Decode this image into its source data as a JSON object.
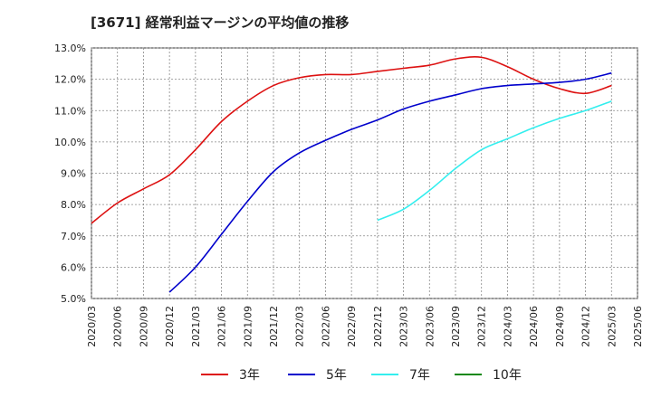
{
  "chart_data": {
    "type": "line",
    "title": "[3671]  経常利益マージンの平均値の推移",
    "xlabel": "",
    "ylabel": "",
    "ylim": [
      5.0,
      13.0
    ],
    "x_ticks": [
      "2020/03",
      "2020/06",
      "2020/09",
      "2020/12",
      "2021/03",
      "2021/06",
      "2021/09",
      "2021/12",
      "2022/03",
      "2022/06",
      "2022/09",
      "2022/12",
      "2023/03",
      "2023/06",
      "2023/09",
      "2023/12",
      "2024/03",
      "2024/06",
      "2024/09",
      "2024/12",
      "2025/03",
      "2025/06"
    ],
    "y_ticks": [
      "5.0%",
      "6.0%",
      "7.0%",
      "8.0%",
      "9.0%",
      "10.0%",
      "11.0%",
      "12.0%",
      "13.0%"
    ],
    "grid": true,
    "legend_position": "bottom",
    "series": [
      {
        "name": "3年",
        "color": "#dd1111",
        "values": [
          7.4,
          8.05,
          8.5,
          8.95,
          9.75,
          10.65,
          11.3,
          11.8,
          12.05,
          12.15,
          12.15,
          12.25,
          12.35,
          12.45,
          12.65,
          12.7,
          12.4,
          12.0,
          11.7,
          11.55,
          11.8
        ]
      },
      {
        "name": "5年",
        "color": "#0000cc",
        "values": [
          null,
          null,
          null,
          5.2,
          6.0,
          7.05,
          8.1,
          9.05,
          9.65,
          10.05,
          10.4,
          10.7,
          11.05,
          11.3,
          11.5,
          11.7,
          11.8,
          11.85,
          11.9,
          12.0,
          12.2
        ]
      },
      {
        "name": "7年",
        "color": "#33eeee",
        "values": [
          null,
          null,
          null,
          null,
          null,
          null,
          null,
          null,
          null,
          null,
          null,
          7.5,
          7.85,
          8.45,
          9.15,
          9.75,
          10.1,
          10.45,
          10.75,
          11.0,
          11.3
        ]
      },
      {
        "name": "10年",
        "color": "#118811",
        "values": [
          null,
          null,
          null,
          null,
          null,
          null,
          null,
          null,
          null,
          null,
          null,
          null,
          null,
          null,
          null,
          null,
          null,
          null,
          null,
          null,
          null
        ]
      }
    ]
  }
}
